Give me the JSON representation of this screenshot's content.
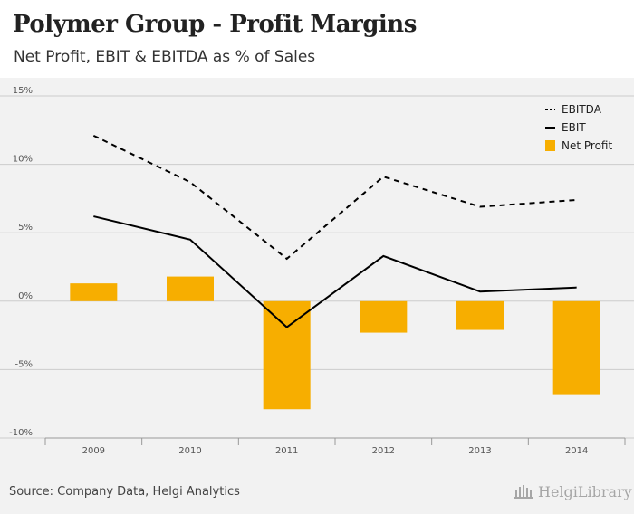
{
  "header": {
    "title": "Polymer Group - Profit Margins",
    "subtitle": "Net Profit, EBIT & EBITDA as % of Sales"
  },
  "footer": {
    "source": "Source: Company Data, Helgi Analytics",
    "logo_text": "HelgiLibrary"
  },
  "colors": {
    "bar": "#f7ae00",
    "line": "#000000",
    "grid": "#cccccc",
    "tick_text": "#555555"
  },
  "chart_data": {
    "type": "bar+line",
    "title": "Polymer Group - Profit Margins",
    "subtitle": "Net Profit, EBIT & EBITDA as % of Sales",
    "categories": [
      "2009",
      "2010",
      "2011",
      "2012",
      "2013",
      "2014"
    ],
    "ylim": [
      -10,
      15
    ],
    "yticks": [
      15,
      10,
      5,
      0,
      -5,
      -10
    ],
    "ytick_labels": [
      "15%",
      "10%",
      "5%",
      "0%",
      "-5%",
      "-10%"
    ],
    "grid": true,
    "legend_position": "top-right",
    "series": [
      {
        "name": "EBITDA",
        "kind": "line",
        "style": "dashed",
        "values": [
          12.1,
          8.7,
          3.1,
          9.1,
          6.9,
          7.4
        ]
      },
      {
        "name": "EBIT",
        "kind": "line",
        "style": "solid",
        "values": [
          6.2,
          4.5,
          -1.9,
          3.3,
          0.7,
          1.0
        ]
      },
      {
        "name": "Net Profit",
        "kind": "bar",
        "values": [
          1.3,
          1.8,
          -7.9,
          -2.3,
          -2.1,
          -6.8
        ]
      }
    ]
  }
}
